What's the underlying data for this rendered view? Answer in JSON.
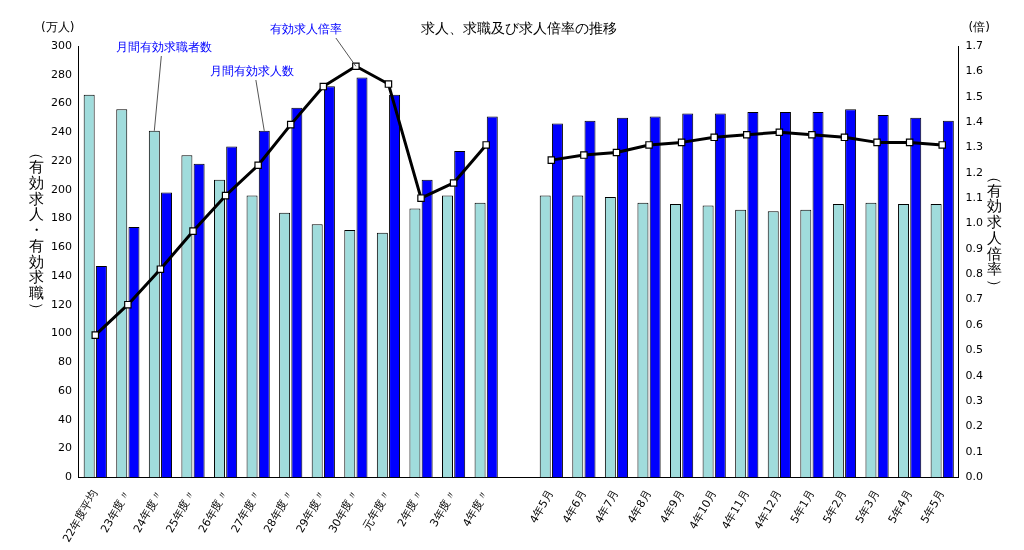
{
  "chart_data": {
    "type": "bar",
    "title": "求人、求職及び求人倍率の推移",
    "ylabel": "（有効求人・有効求職）",
    "y2label": "（有効求人倍率）",
    "annotations": [
      "(万人)",
      "(倍)"
    ],
    "categories": [
      "22年度平均",
      "23年度〃",
      "24年度〃",
      "25年度〃",
      "26年度〃",
      "27年度〃",
      "28年度〃",
      "29年度〃",
      "30年度〃",
      "元年度〃",
      "2年度〃",
      "3年度〃",
      "4年度〃",
      null,
      "4年5月",
      "4年6月",
      "4年7月",
      "4年8月",
      "4年9月",
      "4年10月",
      "4年11月",
      "4年12月",
      "5年1月",
      "5年2月",
      "5年3月",
      "5年4月",
      "5年5月"
    ],
    "series": [
      {
        "name": "月間有効求職者数",
        "color": "#a0dcdc",
        "values": [
          266,
          256,
          241,
          224,
          207,
          196,
          184,
          176,
          172,
          170,
          187,
          196,
          191,
          null,
          196,
          196,
          195,
          191,
          190,
          189,
          186,
          185,
          186,
          190,
          191,
          190,
          190
        ]
      },
      {
        "name": "月間有効求人数",
        "color": "#0000ff",
        "values": [
          147,
          174,
          198,
          218,
          230,
          241,
          257,
          272,
          278,
          266,
          207,
          227,
          251,
          null,
          246,
          248,
          250,
          251,
          253,
          253,
          254,
          254,
          254,
          256,
          252,
          250,
          248
        ]
      },
      {
        "name": "有効求人倍率",
        "type": "line",
        "axis": "y2",
        "color": "#000000",
        "marker": "square",
        "values": [
          0.56,
          0.68,
          0.82,
          0.97,
          1.11,
          1.23,
          1.39,
          1.54,
          1.62,
          1.55,
          1.1,
          1.16,
          1.31,
          null,
          1.25,
          1.27,
          1.28,
          1.31,
          1.32,
          1.34,
          1.35,
          1.36,
          1.35,
          1.34,
          1.32,
          1.32,
          1.31
        ]
      }
    ],
    "ylim": [
      0,
      300
    ],
    "yticks": [
      0,
      20,
      40,
      60,
      80,
      100,
      120,
      140,
      160,
      180,
      200,
      220,
      240,
      260,
      280,
      300
    ],
    "y2lim": [
      0,
      1.7
    ],
    "y2ticks": [
      {
        "value": 0,
        "label": "0.0"
      },
      0.1,
      0.2,
      0.3,
      0.4,
      0.5,
      0.6,
      0.7,
      0.8,
      0.9,
      {
        "value": 1,
        "label": "1.0"
      },
      1.1,
      1.2,
      1.3,
      1.4,
      1.5,
      1.6,
      1.7
    ],
    "grid": false,
    "legend": false
  }
}
